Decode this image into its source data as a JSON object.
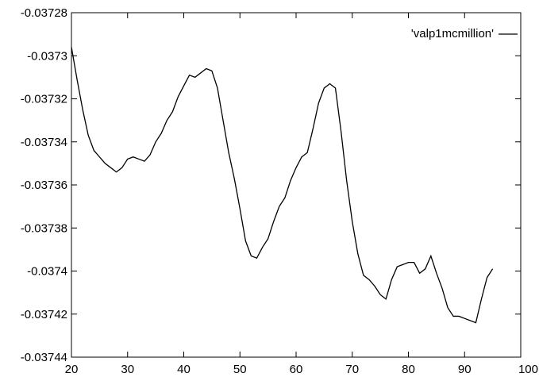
{
  "chart_data": {
    "type": "line",
    "title": "",
    "xlabel": "",
    "ylabel": "",
    "xlim": [
      20,
      100
    ],
    "ylim": [
      -0.03744,
      -0.03728
    ],
    "xticks": [
      "20",
      "30",
      "40",
      "50",
      "60",
      "70",
      "80",
      "90",
      "100"
    ],
    "yticks": [
      "-0.03728",
      "-0.0373",
      "-0.03732",
      "-0.03734",
      "-0.03736",
      "-0.03738",
      "-0.0374",
      "-0.03742",
      "-0.03744"
    ],
    "grid": false,
    "legend_position": "top-right",
    "series": [
      {
        "name": "'valp1mcmillion'",
        "color": "#000000",
        "x": [
          20,
          21,
          22,
          23,
          24,
          25,
          26,
          27,
          28,
          29,
          30,
          31,
          32,
          33,
          34,
          35,
          36,
          37,
          38,
          39,
          40,
          41,
          42,
          43,
          44,
          45,
          46,
          47,
          48,
          49,
          50,
          51,
          52,
          53,
          54,
          55,
          56,
          57,
          58,
          59,
          60,
          61,
          62,
          63,
          64,
          65,
          66,
          67,
          68,
          69,
          70,
          71,
          72,
          73,
          74,
          75,
          76,
          77,
          78,
          79,
          80,
          81,
          82,
          83,
          84,
          85,
          86,
          87,
          88,
          89,
          90,
          91,
          92,
          93,
          94,
          95
        ],
        "y": [
          -0.037296,
          -0.037311,
          -0.037325,
          -0.037337,
          -0.037344,
          -0.037347,
          -0.03735,
          -0.037352,
          -0.037354,
          -0.037352,
          -0.037348,
          -0.037347,
          -0.037348,
          -0.037349,
          -0.037346,
          -0.03734,
          -0.037336,
          -0.03733,
          -0.037326,
          -0.037319,
          -0.037314,
          -0.037309,
          -0.03731,
          -0.037308,
          -0.037306,
          -0.037307,
          -0.037315,
          -0.03733,
          -0.037345,
          -0.037357,
          -0.037371,
          -0.037386,
          -0.037393,
          -0.037394,
          -0.037389,
          -0.037385,
          -0.037377,
          -0.03737,
          -0.037366,
          -0.037358,
          -0.037352,
          -0.037347,
          -0.037345,
          -0.037334,
          -0.037322,
          -0.037315,
          -0.037313,
          -0.037315,
          -0.037335,
          -0.037358,
          -0.037377,
          -0.037392,
          -0.037402,
          -0.037404,
          -0.037407,
          -0.037411,
          -0.037413,
          -0.037404,
          -0.037398,
          -0.037397,
          -0.037396,
          -0.037396,
          -0.037401,
          -0.037399,
          -0.037393,
          -0.037401,
          -0.037408,
          -0.037417,
          -0.037421,
          -0.037421,
          -0.037422,
          -0.037423,
          -0.037424,
          -0.037413,
          -0.037403,
          -0.037399
        ]
      }
    ]
  }
}
